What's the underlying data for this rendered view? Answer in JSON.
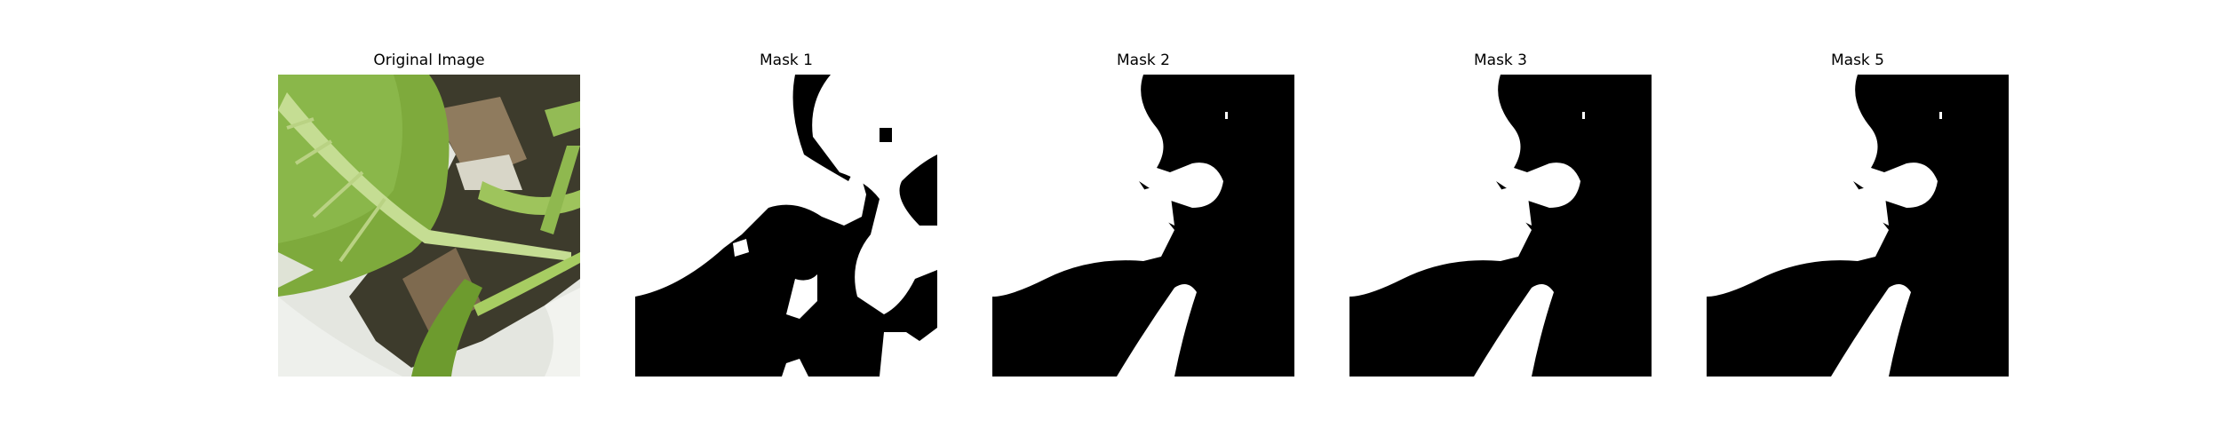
{
  "panels": [
    {
      "title": "Original Image",
      "kind": "photo"
    },
    {
      "title": "Mask 1",
      "kind": "mask"
    },
    {
      "title": "Mask 2",
      "kind": "mask"
    },
    {
      "title": "Mask 3",
      "kind": "mask"
    },
    {
      "title": "Mask 5",
      "kind": "mask"
    }
  ],
  "colors": {
    "mask_background": "#000000",
    "mask_foreground": "#ffffff",
    "leaf_green": "#7fae3e",
    "leaf_light": "#a6c766",
    "stem_green": "#9cc35a",
    "pot_white": "#e9ebe6",
    "soil_dark": "#3b3a2b"
  }
}
